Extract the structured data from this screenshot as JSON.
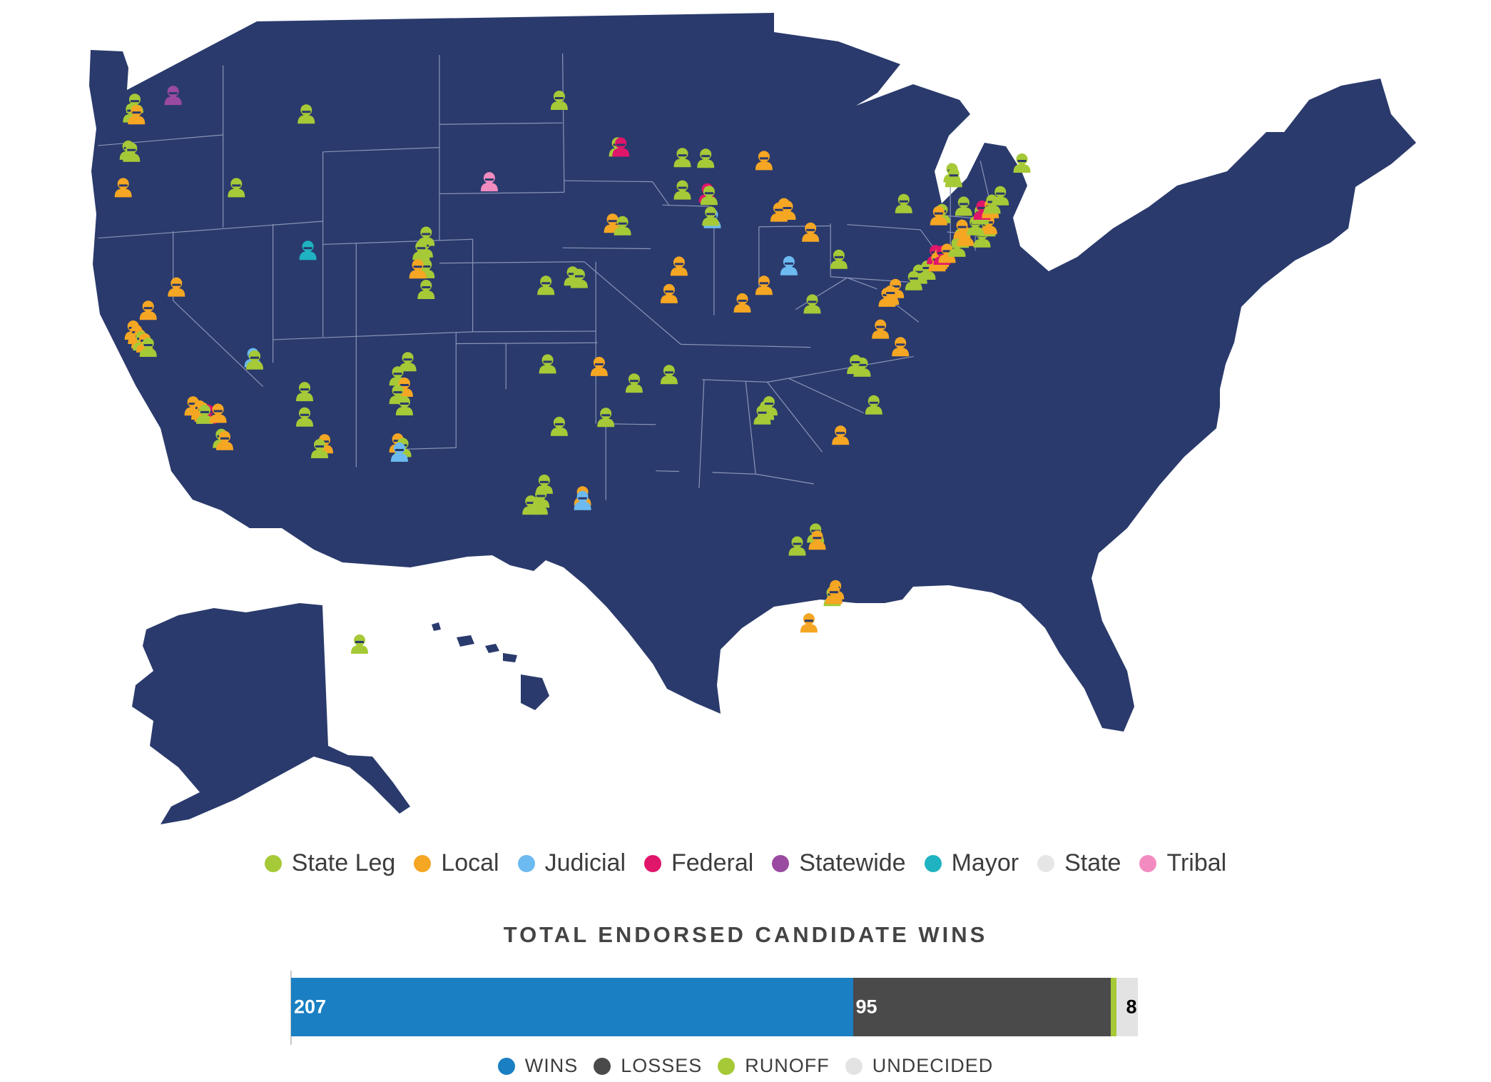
{
  "map": {
    "background_color": "#2a3a6c",
    "border_color": "#8a94b8"
  },
  "legend": {
    "items": [
      {
        "label": "State Leg",
        "color": "#a6c937"
      },
      {
        "label": "Local",
        "color": "#f5a623"
      },
      {
        "label": "Judicial",
        "color": "#6cbaf0"
      },
      {
        "label": "Federal",
        "color": "#e0166b"
      },
      {
        "label": "Statewide",
        "color": "#9a4aa0"
      },
      {
        "label": "Mayor",
        "color": "#1fb3c1"
      },
      {
        "label": "State",
        "color": "#e6e6e6"
      },
      {
        "label": "Tribal",
        "color": "#f28cc0"
      }
    ]
  },
  "results": {
    "title": "TOTAL ENDORSED CANDIDATE WINS",
    "segments": [
      {
        "key": "wins",
        "label": "207",
        "value": 207,
        "color": "#1a7fc3"
      },
      {
        "key": "losses",
        "label": "95",
        "value": 95,
        "color": "#4a4a4a"
      },
      {
        "key": "runoff",
        "label": "",
        "value": 2,
        "color": "#a6c937"
      },
      {
        "key": "undecided",
        "label": "8",
        "value": 8,
        "color": "#e3e3e3"
      }
    ],
    "legend": [
      {
        "label": "WINS",
        "color": "#1a7fc3"
      },
      {
        "label": "LOSSES",
        "color": "#4a4a4a"
      },
      {
        "label": "RUNOFF",
        "color": "#a6c937"
      },
      {
        "label": "UNDECIDED",
        "color": "#e3e3e3"
      }
    ]
  },
  "markers": [
    {
      "category": "State Leg",
      "lon": -122.3,
      "lat": 47.6
    },
    {
      "category": "State Leg",
      "lon": -122.5,
      "lat": 47.2
    },
    {
      "category": "Local",
      "lon": -122.2,
      "lat": 47.1
    },
    {
      "category": "Statewide",
      "lon": -120.0,
      "lat": 47.8
    },
    {
      "category": "State Leg",
      "lon": -122.7,
      "lat": 45.6
    },
    {
      "category": "State Leg",
      "lon": -122.5,
      "lat": 45.5
    },
    {
      "category": "Local",
      "lon": -123.0,
      "lat": 44.0
    },
    {
      "category": "State Leg",
      "lon": -116.2,
      "lat": 43.6
    },
    {
      "category": "State Leg",
      "lon": -112.0,
      "lat": 46.6
    },
    {
      "category": "State Leg",
      "lon": -96.8,
      "lat": 46.9
    },
    {
      "category": "Tribal",
      "lon": -101.0,
      "lat": 43.4
    },
    {
      "category": "State Leg",
      "lon": -104.8,
      "lat": 41.1
    },
    {
      "category": "State Leg",
      "lon": -104.9,
      "lat": 40.6
    },
    {
      "category": "State Leg",
      "lon": -105.1,
      "lat": 40.5
    },
    {
      "category": "State Leg",
      "lon": -105.0,
      "lat": 39.8
    },
    {
      "category": "State Leg",
      "lon": -104.8,
      "lat": 39.7
    },
    {
      "category": "Local",
      "lon": -105.3,
      "lat": 39.7
    },
    {
      "category": "State Leg",
      "lon": -104.8,
      "lat": 38.8
    },
    {
      "category": "Mayor",
      "lon": -111.9,
      "lat": 40.7
    },
    {
      "category": "Local",
      "lon": -119.8,
      "lat": 39.5
    },
    {
      "category": "Local",
      "lon": -121.5,
      "lat": 38.6
    },
    {
      "category": "Local",
      "lon": -122.4,
      "lat": 37.8
    },
    {
      "category": "Local",
      "lon": -122.2,
      "lat": 37.6
    },
    {
      "category": "Local",
      "lon": -122.0,
      "lat": 37.4
    },
    {
      "category": "State Leg",
      "lon": -121.9,
      "lat": 37.3
    },
    {
      "category": "Local",
      "lon": -121.7,
      "lat": 37.2
    },
    {
      "category": "State Leg",
      "lon": -121.5,
      "lat": 37.0
    },
    {
      "category": "Judicial",
      "lon": -115.2,
      "lat": 36.2
    },
    {
      "category": "State Leg",
      "lon": -115.1,
      "lat": 36.1
    },
    {
      "category": "Local",
      "lon": -118.8,
      "lat": 34.3
    },
    {
      "category": "Local",
      "lon": -118.4,
      "lat": 34.1
    },
    {
      "category": "Local",
      "lon": -118.2,
      "lat": 34.0
    },
    {
      "category": "Federal",
      "lon": -117.9,
      "lat": 33.9
    },
    {
      "category": "State Leg",
      "lon": -118.1,
      "lat": 33.9
    },
    {
      "category": "Local",
      "lon": -117.3,
      "lat": 33.9
    },
    {
      "category": "State Leg",
      "lon": -117.1,
      "lat": 32.8
    },
    {
      "category": "Local",
      "lon": -116.9,
      "lat": 32.7
    },
    {
      "category": "State Leg",
      "lon": -112.1,
      "lat": 34.6
    },
    {
      "category": "State Leg",
      "lon": -112.1,
      "lat": 33.5
    },
    {
      "category": "Local",
      "lon": -110.9,
      "lat": 32.3
    },
    {
      "category": "State Leg",
      "lon": -111.2,
      "lat": 32.1
    },
    {
      "category": "State Leg",
      "lon": -106.5,
      "lat": 35.1
    },
    {
      "category": "Local",
      "lon": -106.1,
      "lat": 34.6
    },
    {
      "category": "State Leg",
      "lon": -105.9,
      "lat": 35.7
    },
    {
      "category": "State Leg",
      "lon": -106.5,
      "lat": 34.3
    },
    {
      "category": "State Leg",
      "lon": -106.1,
      "lat": 33.8
    },
    {
      "category": "Local",
      "lon": -106.5,
      "lat": 32.2
    },
    {
      "category": "State Leg",
      "lon": -106.2,
      "lat": 32.0
    },
    {
      "category": "Judicial",
      "lon": -106.4,
      "lat": 31.8
    },
    {
      "category": "State Leg",
      "lon": -97.6,
      "lat": 38.9
    },
    {
      "category": "State Leg",
      "lon": -97.5,
      "lat": 35.5
    },
    {
      "category": "State Leg",
      "lon": -96.0,
      "lat": 39.3
    },
    {
      "category": "State Leg",
      "lon": -95.6,
      "lat": 39.2
    },
    {
      "category": "State Leg",
      "lon": -96.8,
      "lat": 32.8
    },
    {
      "category": "State Leg",
      "lon": -97.7,
      "lat": 30.3
    },
    {
      "category": "State Leg",
      "lon": -98.5,
      "lat": 29.4
    },
    {
      "category": "State Leg",
      "lon": -98.0,
      "lat": 29.4
    },
    {
      "category": "State Leg",
      "lon": -97.9,
      "lat": 29.7
    },
    {
      "category": "Local",
      "lon": -95.4,
      "lat": 29.8
    },
    {
      "category": "Judicial",
      "lon": -95.4,
      "lat": 29.6
    },
    {
      "category": "State Leg",
      "lon": -94.0,
      "lat": 33.2
    },
    {
      "category": "Local",
      "lon": -94.4,
      "lat": 35.4
    },
    {
      "category": "State Leg",
      "lon": -92.3,
      "lat": 34.7
    },
    {
      "category": "State Leg",
      "lon": -90.2,
      "lat": 35.1
    },
    {
      "category": "Local",
      "lon": -90.2,
      "lat": 38.6
    },
    {
      "category": "State Leg",
      "lon": -93.3,
      "lat": 44.9
    },
    {
      "category": "Federal",
      "lon": -93.1,
      "lat": 44.9
    },
    {
      "category": "Local",
      "lon": -93.6,
      "lat": 41.6
    },
    {
      "category": "State Leg",
      "lon": -93.0,
      "lat": 41.5
    },
    {
      "category": "State Leg",
      "lon": -89.4,
      "lat": 44.5
    },
    {
      "category": "State Leg",
      "lon": -88.0,
      "lat": 44.5
    },
    {
      "category": "Federal",
      "lon": -87.9,
      "lat": 43.0
    },
    {
      "category": "State Leg",
      "lon": -87.8,
      "lat": 42.9
    },
    {
      "category": "State Leg",
      "lon": -89.4,
      "lat": 43.1
    },
    {
      "category": "Judicial",
      "lon": -87.6,
      "lat": 41.9
    },
    {
      "category": "State Leg",
      "lon": -87.7,
      "lat": 42.0
    },
    {
      "category": "Local",
      "lon": -89.6,
      "lat": 39.8
    },
    {
      "category": "Local",
      "lon": -84.5,
      "lat": 44.5
    },
    {
      "category": "Local",
      "lon": -83.3,
      "lat": 42.5
    },
    {
      "category": "Local",
      "lon": -83.6,
      "lat": 42.3
    },
    {
      "category": "Local",
      "lon": -83.1,
      "lat": 42.4
    },
    {
      "category": "Local",
      "lon": -81.7,
      "lat": 41.5
    },
    {
      "category": "Judicial",
      "lon": -83.0,
      "lat": 40.0
    },
    {
      "category": "Local",
      "lon": -84.5,
      "lat": 39.1
    },
    {
      "category": "Local",
      "lon": -85.8,
      "lat": 38.3
    },
    {
      "category": "State Leg",
      "lon": -81.6,
      "lat": 38.4
    },
    {
      "category": "State Leg",
      "lon": -80.0,
      "lat": 40.4
    },
    {
      "category": "Local",
      "lon": -77.5,
      "lat": 37.5
    },
    {
      "category": "Local",
      "lon": -76.3,
      "lat": 36.8
    },
    {
      "category": "Local",
      "lon": -77.1,
      "lat": 38.9
    },
    {
      "category": "Local",
      "lon": -76.6,
      "lat": 39.3
    },
    {
      "category": "Local",
      "lon": -76.9,
      "lat": 39.0
    },
    {
      "category": "State Leg",
      "lon": -78.6,
      "lat": 35.8
    },
    {
      "category": "State Leg",
      "lon": -79.0,
      "lat": 35.9
    },
    {
      "category": "State Leg",
      "lon": -77.9,
      "lat": 34.2
    },
    {
      "category": "Local",
      "lon": -79.9,
      "lat": 32.8
    },
    {
      "category": "State Leg",
      "lon": -84.4,
      "lat": 33.7
    },
    {
      "category": "State Leg",
      "lon": -84.2,
      "lat": 33.9
    },
    {
      "category": "State Leg",
      "lon": -84.6,
      "lat": 33.5
    },
    {
      "category": "State Leg",
      "lon": -81.4,
      "lat": 28.5
    },
    {
      "category": "Local",
      "lon": -81.3,
      "lat": 28.2
    },
    {
      "category": "State Leg",
      "lon": -82.5,
      "lat": 27.9
    },
    {
      "category": "Local",
      "lon": -80.2,
      "lat": 26.1
    },
    {
      "category": "State Leg",
      "lon": -80.4,
      "lat": 25.8
    },
    {
      "category": "Local",
      "lon": -80.3,
      "lat": 25.9
    },
    {
      "category": "Local",
      "lon": -81.8,
      "lat": 24.6
    },
    {
      "category": "State Leg",
      "lon": -75.2,
      "lat": 40.0
    },
    {
      "category": "State Leg",
      "lon": -75.5,
      "lat": 39.7
    },
    {
      "category": "State Leg",
      "lon": -74.7,
      "lat": 40.2
    },
    {
      "category": "Local",
      "lon": -74.0,
      "lat": 40.7
    },
    {
      "category": "Federal",
      "lon": -74.2,
      "lat": 40.9
    },
    {
      "category": "Local",
      "lon": -73.9,
      "lat": 40.8
    },
    {
      "category": "Local",
      "lon": -74.1,
      "lat": 40.6
    },
    {
      "category": "Federal",
      "lon": -73.8,
      "lat": 40.9
    },
    {
      "category": "Local",
      "lon": -73.5,
      "lat": 41.0
    },
    {
      "category": "State Leg",
      "lon": -72.9,
      "lat": 41.3
    },
    {
      "category": "State Leg",
      "lon": -72.7,
      "lat": 41.7
    },
    {
      "category": "Local",
      "lon": -72.4,
      "lat": 41.8
    },
    {
      "category": "State Leg",
      "lon": -71.4,
      "lat": 41.8
    },
    {
      "category": "State Leg",
      "lon": -71.1,
      "lat": 42.3
    },
    {
      "category": "Local",
      "lon": -71.0,
      "lat": 42.4
    },
    {
      "category": "Local",
      "lon": -72.6,
      "lat": 42.1
    },
    {
      "category": "State Leg",
      "lon": -71.8,
      "lat": 42.3
    },
    {
      "category": "State Leg",
      "lon": -71.5,
      "lat": 42.8
    },
    {
      "category": "Federal",
      "lon": -71.4,
      "lat": 43.0
    },
    {
      "category": "State Leg",
      "lon": -72.5,
      "lat": 43.1
    },
    {
      "category": "State Leg",
      "lon": -73.2,
      "lat": 44.5
    },
    {
      "category": "State Leg",
      "lon": -73.1,
      "lat": 44.3
    },
    {
      "category": "State Leg",
      "lon": -73.8,
      "lat": 42.7
    },
    {
      "category": "Local",
      "lon": -74.0,
      "lat": 42.6
    },
    {
      "category": "State Leg",
      "lon": -76.1,
      "lat": 43.0
    },
    {
      "category": "Local",
      "lon": -70.9,
      "lat": 43.1
    },
    {
      "category": "State Leg",
      "lon": -70.8,
      "lat": 43.3
    },
    {
      "category": "State Leg",
      "lon": -70.3,
      "lat": 43.7
    },
    {
      "category": "State Leg",
      "lon": -69.0,
      "lat": 45.2
    },
    {
      "category": "State Leg",
      "lon": -157.9,
      "lat": 21.4
    }
  ]
}
